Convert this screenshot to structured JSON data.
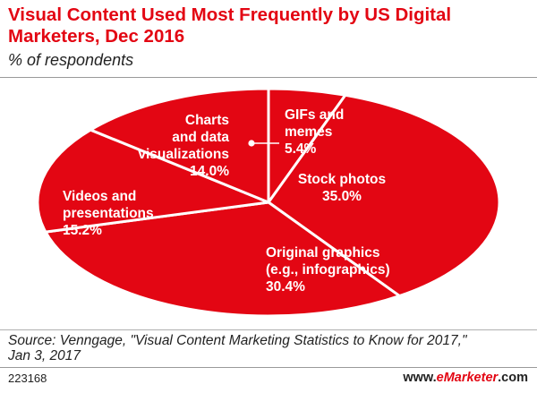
{
  "header": {
    "title_line1": "Visual Content Used Most Frequently by US Digital",
    "title_line2": "Marketers, Dec 2016",
    "subtitle": "% of respondents"
  },
  "colors": {
    "accent": "#e30613",
    "pie_fill": "#e30613",
    "pie_lines": "#ffffff"
  },
  "chart_data": {
    "type": "pie",
    "title": "Visual Content Used Most Frequently by US Digital Marketers, Dec 2016",
    "subtitle": "% of respondents",
    "unit": "%",
    "slices": [
      {
        "label": "GIFs and memes",
        "value": 5.4,
        "value_label": "5.4%"
      },
      {
        "label": "Stock photos",
        "value": 35.0,
        "value_label": "35.0%"
      },
      {
        "label": "Original graphics (e.g., infographics)",
        "value": 30.4,
        "value_label": "30.4%"
      },
      {
        "label": "Videos and presentations",
        "value": 15.2,
        "value_label": "15.2%"
      },
      {
        "label": "Charts and data visualizations",
        "value": 14.0,
        "value_label": "14.0%"
      }
    ],
    "label_lines": [
      [
        "GIFs and",
        "memes",
        "5.4%"
      ],
      [
        "Stock photos",
        "35.0%"
      ],
      [
        "Original graphics",
        "(e.g., infographics)",
        "30.4%"
      ],
      [
        "Videos and",
        "presentations",
        "15.2%"
      ],
      [
        "Charts",
        "and data",
        "visualizations",
        "14.0%"
      ]
    ]
  },
  "footer": {
    "source_line1": "Source: Venngage, \"Visual Content Marketing Statistics to Know for 2017,\"",
    "source_line2": "Jan 3, 2017",
    "chart_id": "223168",
    "brand_prefix": "www.",
    "brand_name": "eMarketer",
    "brand_suffix": ".com"
  }
}
